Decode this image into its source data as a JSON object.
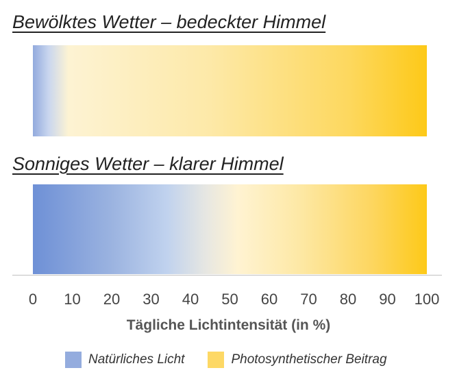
{
  "chart_data": {
    "type": "heatmap",
    "panels": [
      {
        "title": "Bewölktes Wetter – bedeckter Himmel",
        "natural_light_percent": [
          0,
          9
        ],
        "photosynthetic_percent": [
          9,
          100
        ]
      },
      {
        "title": "Sonniges Wetter – klarer Himmel",
        "natural_light_percent": [
          0,
          45
        ],
        "photosynthetic_percent": [
          45,
          100
        ]
      }
    ],
    "xlabel": "Tägliche Lichtintensität (in %)",
    "xlim": [
      0,
      100
    ],
    "xticks": [
      "0",
      "10",
      "20",
      "30",
      "40",
      "50",
      "60",
      "70",
      "80",
      "90",
      "100"
    ],
    "legend": [
      {
        "name": "Natürliches Licht",
        "color": "#94acde"
      },
      {
        "name": "Photosynthetischer Beitrag",
        "color": "#fdd865"
      }
    ],
    "legend_position": "bottom",
    "grid": false
  }
}
